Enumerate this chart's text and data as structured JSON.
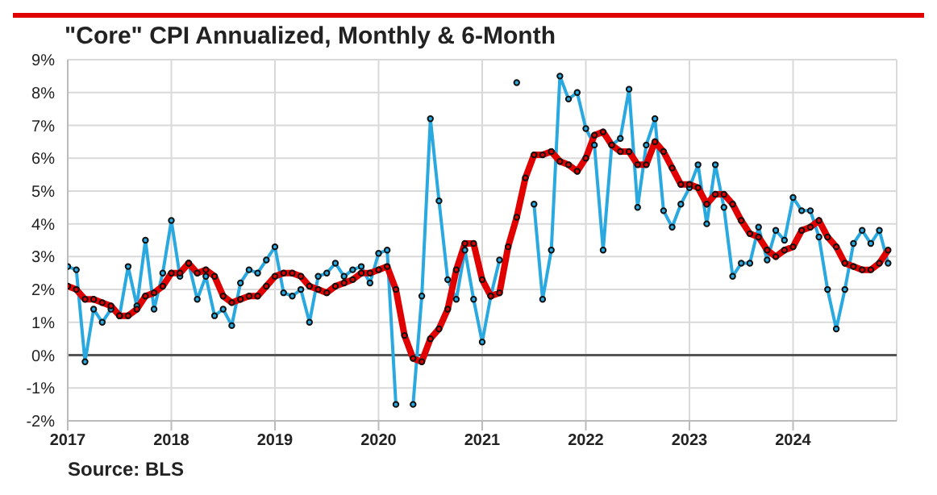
{
  "chart_data": {
    "type": "line",
    "title": "\"Core\" CPI Annualized, Monthly & 6-Month",
    "x": [
      2017,
      2017.083,
      2017.167,
      2017.25,
      2017.333,
      2017.417,
      2017.5,
      2017.583,
      2017.667,
      2017.75,
      2017.833,
      2017.917,
      2018,
      2018.083,
      2018.167,
      2018.25,
      2018.333,
      2018.417,
      2018.5,
      2018.583,
      2018.667,
      2018.75,
      2018.833,
      2018.917,
      2019,
      2019.083,
      2019.167,
      2019.25,
      2019.333,
      2019.417,
      2019.5,
      2019.583,
      2019.667,
      2019.75,
      2019.833,
      2019.917,
      2020,
      2020.083,
      2020.167,
      2020.25,
      2020.333,
      2020.417,
      2020.5,
      2020.583,
      2020.667,
      2020.75,
      2020.833,
      2020.917,
      2021,
      2021.083,
      2021.167,
      2021.25,
      2021.333,
      2021.417,
      2021.5,
      2021.583,
      2021.667,
      2021.75,
      2021.833,
      2021.917,
      2022,
      2022.083,
      2022.167,
      2022.25,
      2022.333,
      2022.417,
      2022.5,
      2022.583,
      2022.667,
      2022.75,
      2022.833,
      2022.917,
      2023,
      2023.083,
      2023.167,
      2023.25,
      2023.333,
      2023.417,
      2023.5,
      2023.583,
      2023.667,
      2023.75,
      2023.833,
      2023.917,
      2024,
      2024.083,
      2024.167,
      2024.25,
      2024.333,
      2024.417,
      2024.5,
      2024.583,
      2024.667,
      2024.75,
      2024.833,
      2024.917
    ],
    "series": [
      {
        "color": "#29a9e0",
        "values": [
          2.7,
          2.6,
          -0.2,
          1.4,
          1.0,
          1.4,
          1.2,
          2.7,
          1.5,
          3.5,
          1.4,
          2.5,
          4.1,
          2.4,
          2.8,
          1.7,
          2.4,
          1.2,
          1.4,
          0.9,
          2.2,
          2.6,
          2.5,
          2.9,
          3.3,
          1.9,
          1.8,
          2.0,
          1.0,
          2.4,
          2.5,
          2.8,
          2.4,
          2.6,
          2.7,
          2.2,
          3.1,
          3.2,
          -1.5,
          null,
          -1.5,
          1.8,
          7.2,
          4.7,
          2.3,
          1.7,
          3.2,
          1.7,
          0.4,
          1.8,
          2.9,
          null,
          8.3,
          null,
          4.6,
          1.7,
          3.2,
          8.5,
          7.8,
          8.0,
          6.9,
          6.4,
          3.2,
          6.4,
          6.6,
          8.1,
          4.5,
          6.4,
          7.2,
          4.4,
          3.9,
          4.6,
          5.1,
          5.8,
          4.0,
          5.8,
          4.5,
          2.4,
          2.8,
          2.8,
          3.9,
          2.9,
          3.8,
          3.5,
          4.8,
          4.4,
          4.4,
          3.6,
          2.0,
          0.8,
          2.0,
          3.4,
          3.8,
          3.4,
          3.8,
          2.8
        ]
      },
      {
        "color": "#e00000",
        "values": [
          2.1,
          2.0,
          1.7,
          1.7,
          1.6,
          1.5,
          1.2,
          1.2,
          1.4,
          1.8,
          1.9,
          2.1,
          2.5,
          2.5,
          2.8,
          2.5,
          2.6,
          2.4,
          1.8,
          1.6,
          1.7,
          1.8,
          1.8,
          2.1,
          2.4,
          2.5,
          2.5,
          2.4,
          2.1,
          2.0,
          1.9,
          2.1,
          2.2,
          2.3,
          2.5,
          2.5,
          2.6,
          2.7,
          2.0,
          0.6,
          -0.1,
          -0.2,
          0.5,
          0.8,
          1.4,
          2.6,
          3.4,
          3.4,
          2.3,
          1.8,
          1.9,
          3.3,
          4.2,
          5.4,
          6.1,
          6.1,
          6.2,
          5.9,
          5.8,
          5.6,
          6.0,
          6.7,
          6.8,
          6.4,
          6.2,
          6.2,
          5.8,
          5.8,
          6.5,
          6.2,
          5.7,
          5.2,
          5.2,
          5.1,
          4.6,
          4.9,
          4.9,
          4.6,
          4.1,
          3.7,
          3.6,
          3.2,
          3.0,
          3.2,
          3.3,
          3.8,
          3.9,
          4.1,
          3.6,
          3.3,
          2.8,
          2.7,
          2.6,
          2.6,
          2.8,
          3.2
        ]
      }
    ],
    "xlim": [
      2017,
      2025
    ],
    "xticks": [
      2017,
      2018,
      2019,
      2020,
      2021,
      2022,
      2023,
      2024
    ],
    "ylim": [
      -2,
      9
    ],
    "yticks": [
      {
        "value": -2,
        "label": "-2%"
      },
      {
        "value": -1,
        "label": "-1%"
      },
      {
        "value": 0,
        "label": "0%"
      },
      {
        "value": 1,
        "label": "1%"
      },
      {
        "value": 2,
        "label": "2%"
      },
      {
        "value": 3,
        "label": "3%"
      },
      {
        "value": 4,
        "label": "4%"
      },
      {
        "value": 5,
        "label": "5%"
      },
      {
        "value": 6,
        "label": "6%"
      },
      {
        "value": 7,
        "label": "7%"
      },
      {
        "value": 8,
        "label": "8%"
      },
      {
        "value": 9,
        "label": "9%"
      }
    ],
    "ref_lines": [
      {
        "axis": "y",
        "value": 0,
        "color": "#555555"
      }
    ],
    "grid": true,
    "marker": "circle",
    "legend": false,
    "annotations": [
      "Source: BLS"
    ]
  }
}
